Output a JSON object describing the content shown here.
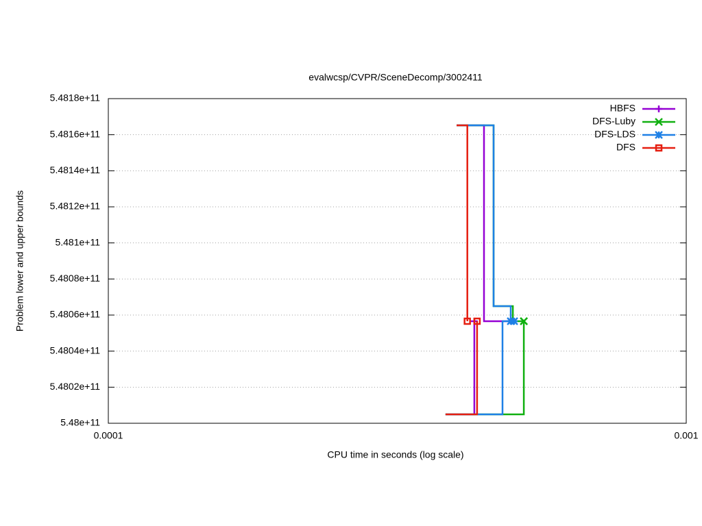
{
  "chart_data": {
    "type": "line",
    "title": "evalwcsp/CVPR/SceneDecomp/3002411",
    "x_label": "CPU time in seconds (log scale)",
    "y_label": "Problem lower and upper bounds",
    "xscale": "log",
    "grid": true,
    "legend": "upper right",
    "xlim": [
      0.0001,
      0.001
    ],
    "xticks": [
      0.0001,
      0.001
    ],
    "ylim": [
      548000000000,
      548180000000
    ],
    "yticks": [
      {
        "value": 548000000000,
        "label": "5.48e+11"
      },
      {
        "value": 548020000000,
        "label": "5.4802e+11"
      },
      {
        "value": 548040000000,
        "label": "5.4804e+11"
      },
      {
        "value": 548060000000,
        "label": "5.4806e+11"
      },
      {
        "value": 548080000000,
        "label": "5.4808e+11"
      },
      {
        "value": 548100000000,
        "label": "5.481e+11"
      },
      {
        "value": 548120000000,
        "label": "5.4812e+11"
      },
      {
        "value": 548140000000,
        "label": "5.4814e+11"
      },
      {
        "value": 548160000000,
        "label": "5.4816e+11"
      },
      {
        "value": 548180000000,
        "label": "5.4818e+11"
      }
    ],
    "series": [
      {
        "name": "HBFS",
        "color": "#9400d3",
        "marker": "plus",
        "x": [
          0.0004005,
          0.0004468,
          0.0004468,
          0.000497,
          null,
          0.0003833,
          0.0004299,
          0.0004299
        ],
        "values": [
          548165200000,
          548165200000,
          548056580000,
          548056580000,
          null,
          548004940000,
          548004940000,
          548056580000
        ]
      },
      {
        "name": "DFS-Luby",
        "color": "#10b010",
        "marker": "cross",
        "x": [
          0.0004005,
          0.0004642,
          0.0004642,
          0.0005012,
          0.0005012,
          0.0005236,
          null,
          0.0003833,
          0.0005236,
          0.0005236
        ],
        "values": [
          548165200000,
          548165200000,
          548064940000,
          548064940000,
          548056580000,
          548056580000,
          null,
          548004940000,
          548004940000,
          548056580000
        ]
      },
      {
        "name": "DFS-LDS",
        "color": "#1e80e6",
        "marker": "star",
        "x": [
          0.0004005,
          0.0004642,
          0.0004642,
          0.000497,
          0.000497,
          0.0005038,
          null,
          0.0003833,
          0.000481,
          0.000481,
          0.000497
        ],
        "values": [
          548165200000,
          548165200000,
          548064940000,
          548064940000,
          548056580000,
          548056580000,
          null,
          548004940000,
          548004940000,
          548056580000,
          548056580000
        ]
      },
      {
        "name": "DFS",
        "color": "#e51e10",
        "marker": "square",
        "x": [
          0.0004005,
          0.000418,
          0.000418,
          null,
          0.0003833,
          0.0004346,
          0.0004346
        ],
        "values": [
          548165200000,
          548165200000,
          548056580000,
          null,
          548004940000,
          548004940000,
          548056580000
        ]
      }
    ]
  }
}
